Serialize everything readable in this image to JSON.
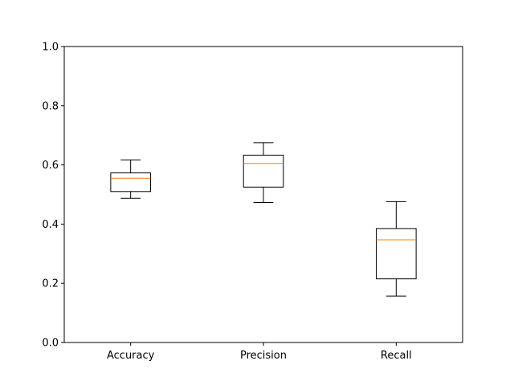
{
  "chart_data": {
    "type": "box",
    "title": "",
    "xlabel": "",
    "ylabel": "",
    "ylim": [
      0,
      1
    ],
    "yticks": [
      "0.0",
      "0.2",
      "0.4",
      "0.6",
      "0.8",
      "1.0"
    ],
    "categories": [
      "Accuracy",
      "Precision",
      "Recall"
    ],
    "boxes": [
      {
        "category": "Accuracy",
        "whisker_low": 0.487,
        "q1": 0.51,
        "median": 0.555,
        "q3": 0.573,
        "whisker_high": 0.617
      },
      {
        "category": "Precision",
        "whisker_low": 0.473,
        "q1": 0.525,
        "median": 0.605,
        "q3": 0.633,
        "whisker_high": 0.675
      },
      {
        "category": "Recall",
        "whisker_low": 0.157,
        "q1": 0.215,
        "median": 0.347,
        "q3": 0.385,
        "whisker_high": 0.476
      }
    ],
    "grid": false,
    "colors": {
      "box": "#000000",
      "median": "#ff7f0e"
    }
  }
}
